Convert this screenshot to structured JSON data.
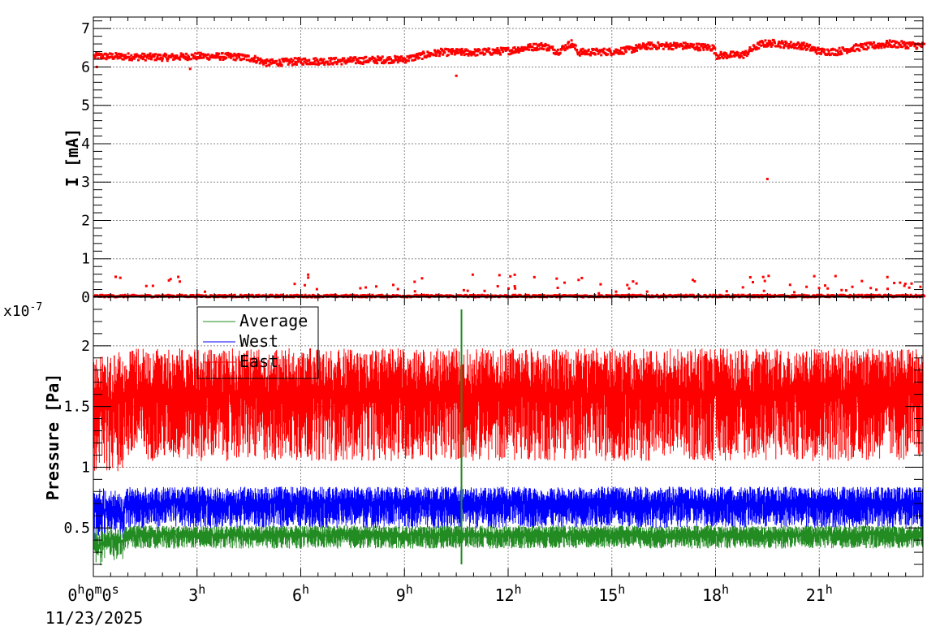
{
  "chart_data": [
    {
      "type": "scatter",
      "title": "",
      "xlabel": "",
      "ylabel": "I [mA]",
      "xlim_hours": [
        0,
        24
      ],
      "ylim": [
        0,
        7.3
      ],
      "yticks": [
        0,
        1,
        2,
        3,
        4,
        5,
        6,
        7
      ],
      "grid": true,
      "series": [
        {
          "color": "#ff0000",
          "profile_hours": [
            0,
            1,
            2,
            3,
            4,
            4.6,
            5,
            6,
            7,
            8,
            9,
            9.5,
            10,
            11,
            12,
            12.5,
            13,
            13.4,
            13.8,
            14,
            15,
            15.5,
            16,
            17,
            17.9,
            18,
            18.8,
            19,
            19.3,
            19.7,
            20,
            20.5,
            21,
            21.5,
            22,
            23,
            24
          ],
          "profile_values": [
            6.28,
            6.27,
            6.25,
            6.28,
            6.27,
            6.22,
            6.1,
            6.15,
            6.15,
            6.18,
            6.2,
            6.3,
            6.38,
            6.38,
            6.42,
            6.5,
            6.55,
            6.4,
            6.62,
            6.38,
            6.4,
            6.45,
            6.55,
            6.55,
            6.5,
            6.3,
            6.32,
            6.45,
            6.6,
            6.62,
            6.58,
            6.55,
            6.4,
            6.4,
            6.5,
            6.6,
            6.55
          ],
          "baseline_value": 0.03,
          "outliers": [
            [
              10.5,
              5.77
            ],
            [
              2.8,
              5.95
            ],
            [
              19.5,
              3.08
            ],
            [
              0.1,
              6.0
            ]
          ]
        }
      ]
    },
    {
      "type": "line",
      "title": "",
      "xlabel": "",
      "ylabel": "Pressure [Pa]",
      "y_multiplier": "x10",
      "y_multiplier_exp": "-7",
      "xlim_hours": [
        0,
        24
      ],
      "ylim": [
        0.1,
        2.4
      ],
      "yticks": [
        0.5,
        1,
        1.5,
        2
      ],
      "ytick_labels": [
        "0.5",
        "1",
        "1.5",
        "2"
      ],
      "grid": true,
      "legend_position": "top-left",
      "series": [
        {
          "name": "Average",
          "color": "#228b22",
          "low": 0.33,
          "high": 0.52,
          "spike": [
            10.65,
            2.3,
            0.2
          ]
        },
        {
          "name": "West",
          "color": "#0000ff",
          "low": 0.5,
          "high": 0.84,
          "spike": [
            10.65,
            0.85,
            0.4
          ]
        },
        {
          "name": "East",
          "color": "#ff0000",
          "low": 1.05,
          "high": 1.98,
          "spike": [
            10.65,
            1.95,
            0.7
          ]
        }
      ]
    }
  ],
  "x_axis": {
    "tick_labels": [
      {
        "hours": 0,
        "parts": [
          [
            "0",
            "h"
          ],
          [
            "0",
            "m"
          ],
          [
            "0",
            "s"
          ]
        ]
      },
      {
        "hours": 3,
        "parts": [
          [
            "3",
            "h"
          ]
        ]
      },
      {
        "hours": 6,
        "parts": [
          [
            "6",
            "h"
          ]
        ]
      },
      {
        "hours": 9,
        "parts": [
          [
            "9",
            "h"
          ]
        ]
      },
      {
        "hours": 12,
        "parts": [
          [
            "12",
            "h"
          ]
        ]
      },
      {
        "hours": 15,
        "parts": [
          [
            "15",
            "h"
          ]
        ]
      },
      {
        "hours": 18,
        "parts": [
          [
            "18",
            "h"
          ]
        ]
      },
      {
        "hours": 21,
        "parts": [
          [
            "21",
            "h"
          ]
        ]
      }
    ],
    "date_label": "11/23/2025"
  }
}
